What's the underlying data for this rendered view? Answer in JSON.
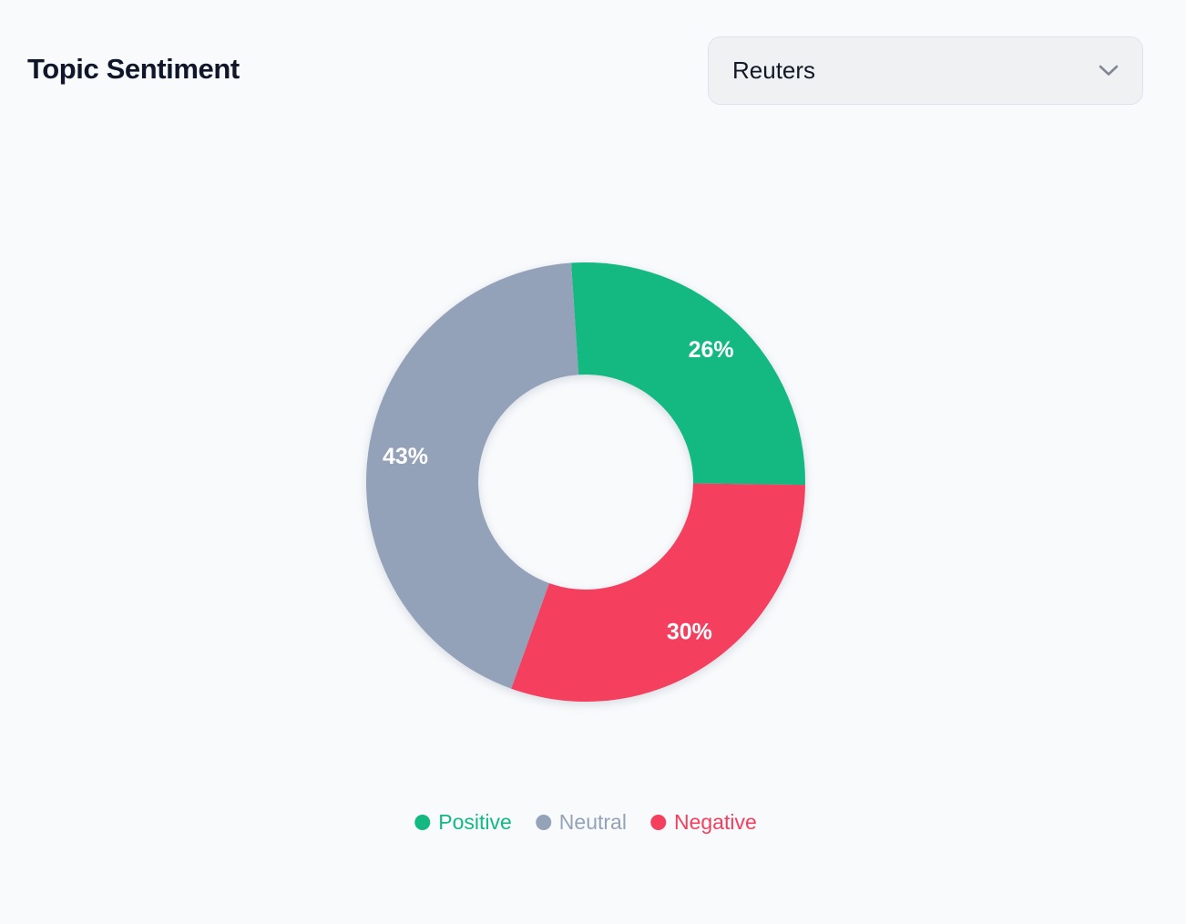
{
  "page": {
    "background": "#f8fafc"
  },
  "header": {
    "title": "Topic Sentiment",
    "source_selector": {
      "value": "Reuters",
      "icon": "chevron-down-icon"
    }
  },
  "chart_data": {
    "type": "pie",
    "subtype": "donut",
    "title": "Topic Sentiment",
    "values_unit": "percent",
    "start_angle_deg": -3.8,
    "direction": "clockwise",
    "inner_radius_ratio": 0.49,
    "label_color": "#ffffff",
    "segments": [
      {
        "label": "Positive",
        "value": 26,
        "display": "26%",
        "color": "#13b981"
      },
      {
        "label": "Negative",
        "value": 30,
        "display": "30%",
        "color": "#f43f5e"
      },
      {
        "label": "Neutral",
        "value": 43,
        "display": "43%",
        "color": "#93a2b8"
      }
    ],
    "legend": {
      "position": "bottom",
      "items": [
        {
          "label": "Positive",
          "color": "#13b981"
        },
        {
          "label": "Neutral",
          "color": "#94a3b8"
        },
        {
          "label": "Negative",
          "color": "#f43f5e"
        }
      ]
    }
  }
}
